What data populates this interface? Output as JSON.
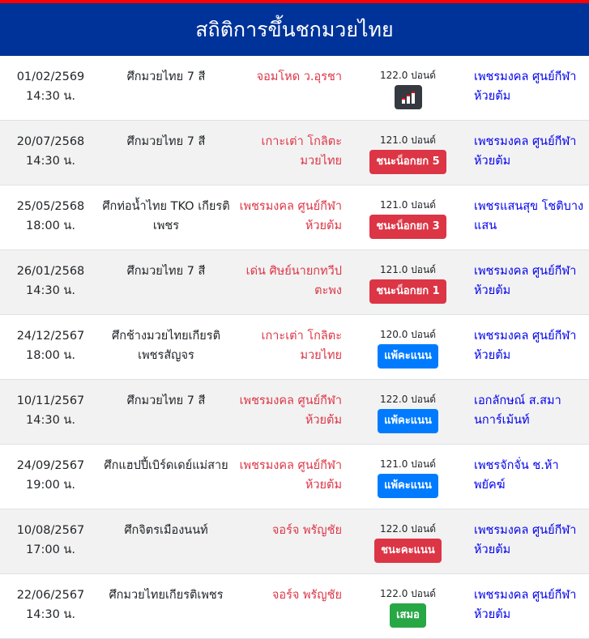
{
  "title": "สถิติการขึ้นชกมวยไทย",
  "colors": {
    "header": "#003399",
    "top_border": "#ff0000",
    "red_corner": "#dc3545",
    "blue_corner": "#0000ee",
    "win": "#dc3545",
    "lose": "#007bff",
    "draw": "#28a745",
    "stats": "#343a40"
  },
  "fights": [
    {
      "date": "01/02/2569",
      "time": "14:30 น.",
      "event": "ศึกมวยไทย 7 สี",
      "red": "จอมโหด ว.อุรชา",
      "weight": "122.0 ปอนด์",
      "result": "",
      "result_type": "stats",
      "icon": "bar-chart-icon",
      "blue": "เพชรมงคล ศูนย์กีฬาห้วยต้ม"
    },
    {
      "date": "20/07/2568",
      "time": "14:30 น.",
      "event": "ศึกมวยไทย 7 สี",
      "red": "เกาะเต่า โกลิตะมวยไทย",
      "weight": "121.0 ปอนด์",
      "result": "ชนะน็อกยก 5",
      "result_type": "win",
      "blue": "เพชรมงคล ศูนย์กีฬาห้วยต้ม"
    },
    {
      "date": "25/05/2568",
      "time": "18:00 น.",
      "event": "ศึกท่อน้ำไทย TKO เกียรติเพชร",
      "red": "เพชรมงคล ศูนย์กีฬาห้วยต้ม",
      "weight": "121.0 ปอนด์",
      "result": "ชนะน็อกยก 3",
      "result_type": "win",
      "blue": "เพชรแสนสุข โชติบางแสน"
    },
    {
      "date": "26/01/2568",
      "time": "14:30 น.",
      "event": "ศึกมวยไทย 7 สี",
      "red": "เด่น ศิษย์นายกทวีปตะพง",
      "weight": "121.0 ปอนด์",
      "result": "ชนะน็อกยก 1",
      "result_type": "win",
      "blue": "เพชรมงคล ศูนย์กีฬาห้วยต้ม"
    },
    {
      "date": "24/12/2567",
      "time": "18:00 น.",
      "event": "ศึกช้างมวยไทยเกียรติเพชรสัญจร",
      "red": "เกาะเต่า โกลิตะมวยไทย",
      "weight": "120.0 ปอนด์",
      "result": "แพ้คะแนน",
      "result_type": "lose",
      "blue": "เพชรมงคล ศูนย์กีฬาห้วยต้ม"
    },
    {
      "date": "10/11/2567",
      "time": "14:30 น.",
      "event": "ศึกมวยไทย 7 สี",
      "red": "เพชรมงคล ศูนย์กีฬาห้วยต้ม",
      "weight": "122.0 ปอนด์",
      "result": "แพ้คะแนน",
      "result_type": "lose",
      "blue": "เอกลักษณ์ ส.สมานการ์เม้นท์"
    },
    {
      "date": "24/09/2567",
      "time": "19:00 น.",
      "event": "ศึกแฮปปี้เบิร์ดเดย์แม่สาย",
      "red": "เพชรมงคล ศูนย์กีฬาห้วยต้ม",
      "weight": "121.0 ปอนด์",
      "result": "แพ้คะแนน",
      "result_type": "lose",
      "blue": "เพชรจักจั่น ช.ห้าพยัคฆ์"
    },
    {
      "date": "10/08/2567",
      "time": "17:00 น.",
      "event": "ศึกจิตรเมืองนนท์",
      "red": "จอร์จ พรัญชัย",
      "weight": "122.0 ปอนด์",
      "result": "ชนะคะแนน",
      "result_type": "win",
      "blue": "เพชรมงคล ศูนย์กีฬาห้วยต้ม"
    },
    {
      "date": "22/06/2567",
      "time": "14:30 น.",
      "event": "ศึกมวยไทยเกียรติเพชร",
      "red": "จอร์จ พรัญชัย",
      "weight": "122.0 ปอนด์",
      "result": "เสมอ",
      "result_type": "draw",
      "blue": "เพชรมงคล ศูนย์กีฬาห้วยต้ม"
    }
  ]
}
